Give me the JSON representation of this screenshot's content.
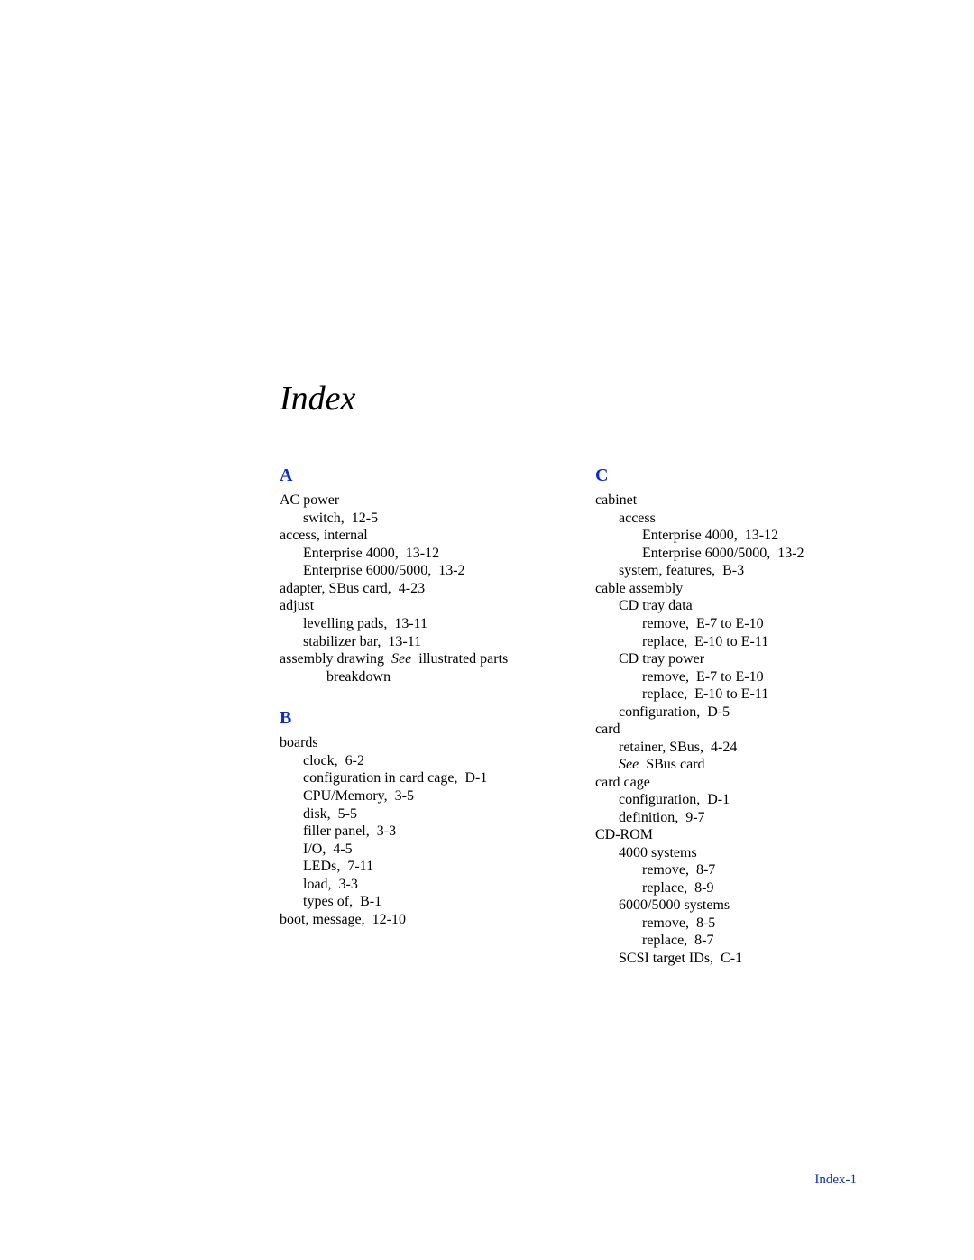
{
  "title": "Index",
  "colors": {
    "link": "#0b2bd6",
    "text": "#000000",
    "background": "#ffffff"
  },
  "footer": "Index-1",
  "sections": {
    "A": {
      "letter": "A",
      "lines": {
        "l0": "AC power",
        "l1": "switch,  12-5",
        "l2": "access, internal",
        "l3": "Enterprise 4000,  13-12",
        "l4": "Enterprise 6000/5000,  13-2",
        "l5": "adapter, SBus card,  4-23",
        "l6": "adjust",
        "l7": "levelling pads,  13-11",
        "l8": "stabilizer bar,  13-11",
        "l9a": "assembly drawing  ",
        "l9see": "See",
        "l9b": "  illustrated parts",
        "l10": "breakdown"
      }
    },
    "B": {
      "letter": "B",
      "lines": {
        "l0": "boards",
        "l1": "clock,  6-2",
        "l2": "configuration in card cage,  D-1",
        "l3": "CPU/Memory,  3-5",
        "l4": "disk,  5-5",
        "l5": "filler panel,  3-3",
        "l6": "I/O,  4-5",
        "l7": "LEDs,  7-11",
        "l8": "load,  3-3",
        "l9": "types of,  B-1",
        "l10": "boot, message,  12-10"
      }
    },
    "C": {
      "letter": "C",
      "lines": {
        "l0": "cabinet",
        "l1": "access",
        "l2": "Enterprise 4000,  13-12",
        "l3": "Enterprise 6000/5000,  13-2",
        "l4": "system, features,  B-3",
        "l5": "cable assembly",
        "l6": "CD tray data",
        "l7": "remove,  E-7 to E-10",
        "l8": "replace,  E-10 to E-11",
        "l9": "CD tray power",
        "l10": "remove,  E-7 to E-10",
        "l11": "replace,  E-10 to E-11",
        "l12": "configuration,  D-5",
        "l13": "card",
        "l14": "retainer, SBus,  4-24",
        "l15see": "See",
        "l15b": "  SBus card",
        "l16": "card cage",
        "l17": "configuration,  D-1",
        "l18": "definition,  9-7",
        "l19": "CD-ROM",
        "l20": "4000 systems",
        "l21": "remove,  8-7",
        "l22": "replace,  8-9",
        "l23": "6000/5000 systems",
        "l24": "remove,  8-5",
        "l25": "replace,  8-7",
        "l26": "SCSI target IDs,  C-1"
      }
    }
  }
}
